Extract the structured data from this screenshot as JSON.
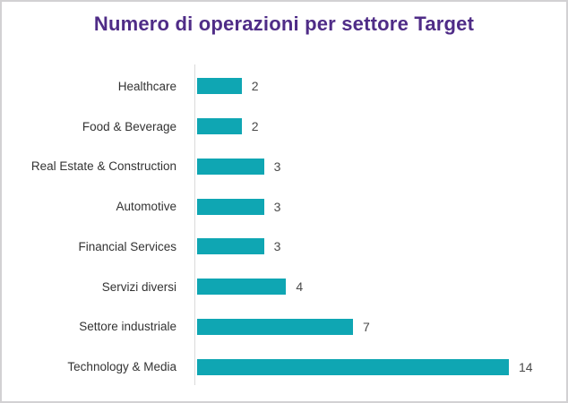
{
  "title": "Numero di operazioni per settore Target",
  "colors": {
    "title": "#4F2C87",
    "bar": "#0FA6B3",
    "axis": "#D9D9D9",
    "category_label": "#333333",
    "value_label": "#4A4A4A",
    "frame_border": "#D2D1D3",
    "background": "#FFFFFF"
  },
  "chart_data": {
    "type": "bar",
    "orientation": "horizontal",
    "title": "Numero di operazioni per settore Target",
    "categories": [
      "Healthcare",
      "Food & Beverage",
      "Real Estate & Construction",
      "Automotive",
      "Financial Services",
      "Servizi diversi",
      "Settore industriale",
      "Technology & Media"
    ],
    "values": [
      2,
      2,
      3,
      3,
      3,
      4,
      7,
      14
    ],
    "value_labels_shown": true,
    "xlabel": "",
    "ylabel": "",
    "xlim": [
      0,
      14.5
    ],
    "grid": false,
    "legend": false
  }
}
